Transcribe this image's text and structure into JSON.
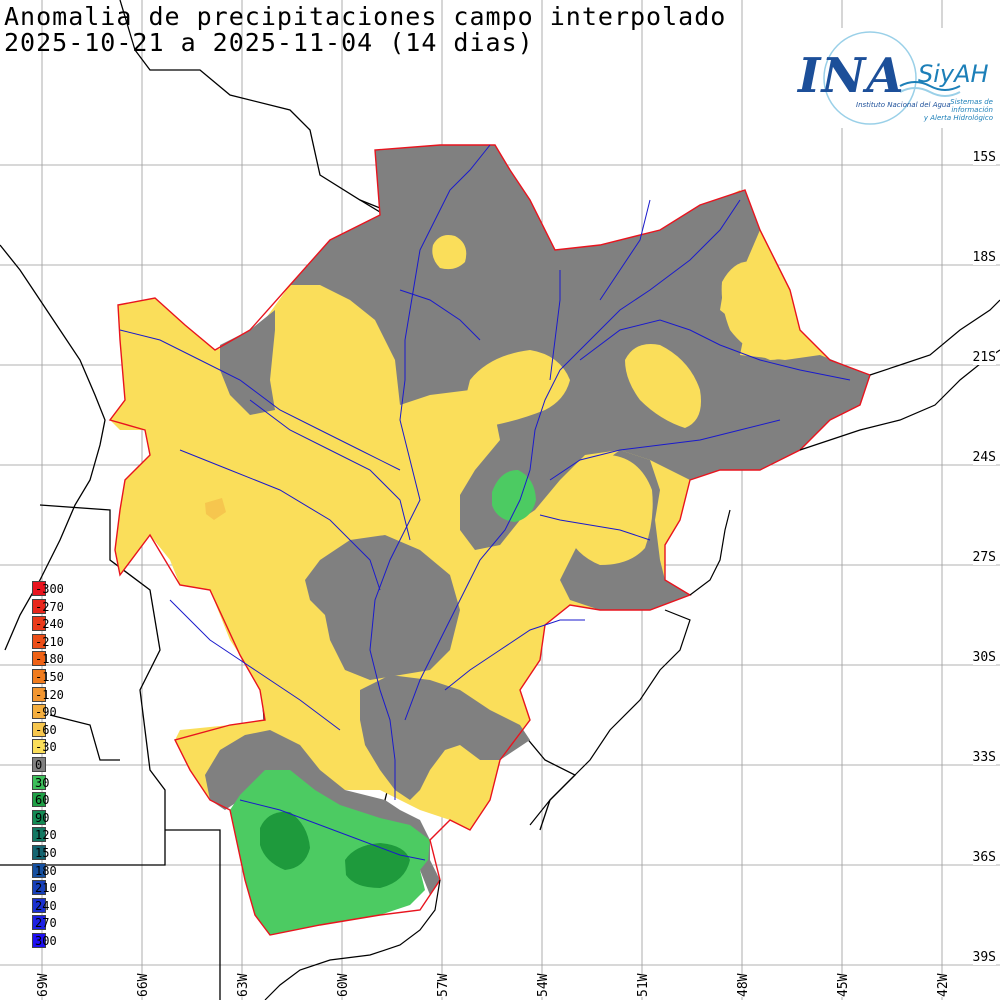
{
  "title": {
    "line1": "Anomalia de precipitaciones campo interpolado",
    "line2": "2025-10-21 a 2025-11-04 (14 dias)"
  },
  "logo": {
    "ina": "INA",
    "siyah": "SiyAH",
    "institute": "Instituto Nacional del Agua",
    "system_line1": "Sistemas de información",
    "system_line2": "y Alerta Hidrológico"
  },
  "latitude_labels": [
    "15S",
    "18S",
    "21S",
    "24S",
    "27S",
    "30S",
    "33S",
    "36S",
    "39S"
  ],
  "longitude_labels": [
    "69W",
    "66W",
    "63W",
    "60W",
    "57W",
    "54W",
    "51W",
    "48W",
    "45W",
    "42W"
  ],
  "legend": [
    {
      "value": "-300",
      "color": "#e8141e"
    },
    {
      "value": "-270",
      "color": "#e8271c"
    },
    {
      "value": "-240",
      "color": "#ea3a1a"
    },
    {
      "value": "-210",
      "color": "#ec4e18"
    },
    {
      "value": "-180",
      "color": "#ee6216"
    },
    {
      "value": "-150",
      "color": "#f07c1e"
    },
    {
      "value": "-120",
      "color": "#f29630"
    },
    {
      "value": "-90",
      "color": "#f4ae3e"
    },
    {
      "value": "-60",
      "color": "#f6c64e"
    },
    {
      "value": "-30",
      "color": "#fade5a"
    },
    {
      "value": "0",
      "color": "#808080"
    },
    {
      "value": "30",
      "color": "#3cbf5a"
    },
    {
      "value": "60",
      "color": "#1fa046"
    },
    {
      "value": "90",
      "color": "#138a54"
    },
    {
      "value": "120",
      "color": "#137862"
    },
    {
      "value": "150",
      "color": "#146470"
    },
    {
      "value": "180",
      "color": "#1650a0"
    },
    {
      "value": "210",
      "color": "#1840b8"
    },
    {
      "value": "240",
      "color": "#1a30d0"
    },
    {
      "value": "270",
      "color": "#1c20e4"
    },
    {
      "value": "300",
      "color": "#1e10f4"
    }
  ],
  "colors": {
    "yellow": "#fade5a",
    "gray": "#808080",
    "green_light": "#4ccb62",
    "green_dark": "#1e9a3c",
    "orange": "#f6c64e",
    "basin_border": "#e8141e",
    "rivers": "#1a1acc"
  }
}
